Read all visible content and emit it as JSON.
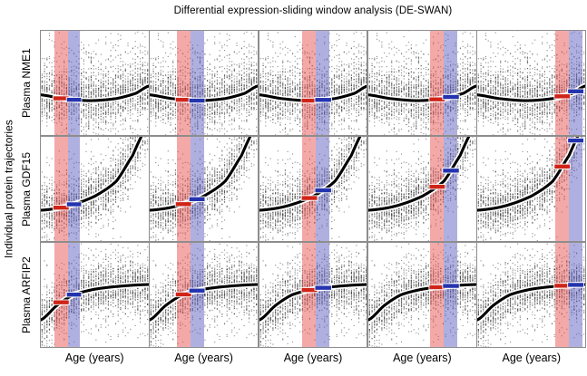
{
  "title": "Differential expression-sliding window analysis (DE-SWAN)",
  "y_axis_outer_label": "Individual protein trajectories",
  "x_axis_label": "Age (years)",
  "chart_data": {
    "type": "scatter",
    "title": "Differential expression-sliding window analysis (DE-SWAN)",
    "xlabel": "Age (years)",
    "ylabel": "Individual protein trajectories",
    "layout": {
      "rows": 3,
      "cols": 5,
      "x_tick_labels": "none",
      "y_tick_labels": "none",
      "legend": "none"
    },
    "description": "Grid of 15 scatter panels: each row shows the same plasma-protein-vs-age point cloud with a black LOESS trend curve; across the 5 columns a paired red/blue sliding age window moves left to right, with red and blue horizontal bars marking the trend level inside each window.",
    "rows": [
      {
        "label": "Plasma NME1",
        "trend": "flat with slight mid-life dip then small late rise",
        "curve_points": [
          [
            0,
            0.385
          ],
          [
            0.2,
            0.35
          ],
          [
            0.45,
            0.33
          ],
          [
            0.7,
            0.35
          ],
          [
            0.88,
            0.4
          ],
          [
            1,
            0.47
          ]
        ],
        "scatter": {
          "n_points": 2400,
          "core_sd": 0.12,
          "tail_p": 0.32,
          "tail_sd": 0.3,
          "tail_up_bias": 0.7,
          "seed": 101
        }
      },
      {
        "label": "Plasma GDF15",
        "trend": "accelerating exponential-like increase with age",
        "curve_points": [
          [
            0,
            0.295
          ],
          [
            0.25,
            0.335
          ],
          [
            0.5,
            0.43
          ],
          [
            0.7,
            0.575
          ],
          [
            0.85,
            0.82
          ],
          [
            0.95,
            1.04
          ],
          [
            1,
            1.18
          ]
        ],
        "scatter": {
          "n_points": 2400,
          "core_sd": 0.11,
          "tail_p": 0.28,
          "tail_sd": 0.22,
          "tail_up_bias": 0.55,
          "seed": 202
        }
      },
      {
        "label": "Plasma ARFIP2",
        "trend": "rapid early increase then plateau",
        "curve_points": [
          [
            0,
            0.26
          ],
          [
            0.15,
            0.4
          ],
          [
            0.3,
            0.5
          ],
          [
            0.5,
            0.555
          ],
          [
            0.75,
            0.585
          ],
          [
            1,
            0.6
          ]
        ],
        "scatter": {
          "n_points": 2300,
          "core_sd": 0.11,
          "tail_p": 0.28,
          "tail_sd": 0.24,
          "tail_up_bias": 0.5,
          "seed": 303
        }
      }
    ],
    "columns": [
      {
        "name": "window-position-1",
        "red_window": [
          0.125,
          0.25
        ],
        "blue_window": [
          0.25,
          0.365
        ]
      },
      {
        "name": "window-position-2",
        "red_window": [
          0.25,
          0.375
        ],
        "blue_window": [
          0.375,
          0.5
        ]
      },
      {
        "name": "window-position-3",
        "red_window": [
          0.4,
          0.525
        ],
        "blue_window": [
          0.525,
          0.655
        ]
      },
      {
        "name": "window-position-4",
        "red_window": [
          0.575,
          0.7
        ],
        "blue_window": [
          0.7,
          0.83
        ]
      },
      {
        "name": "window-position-5",
        "red_window": [
          0.725,
          0.85
        ],
        "blue_window": [
          0.85,
          0.975
        ]
      }
    ],
    "colors": {
      "scatter_dot": "rgba(55,55,55,0.55)",
      "red_band": "rgba(232,72,72,0.47)",
      "blue_band": "rgba(88,88,190,0.47)",
      "red_segment": "#d02418",
      "blue_segment": "#2433ae",
      "curve": "#000000",
      "curve_halo": "#ffffff",
      "panel_border": "#8d8d8d",
      "background": "#ffffff",
      "text": "#000000"
    }
  }
}
